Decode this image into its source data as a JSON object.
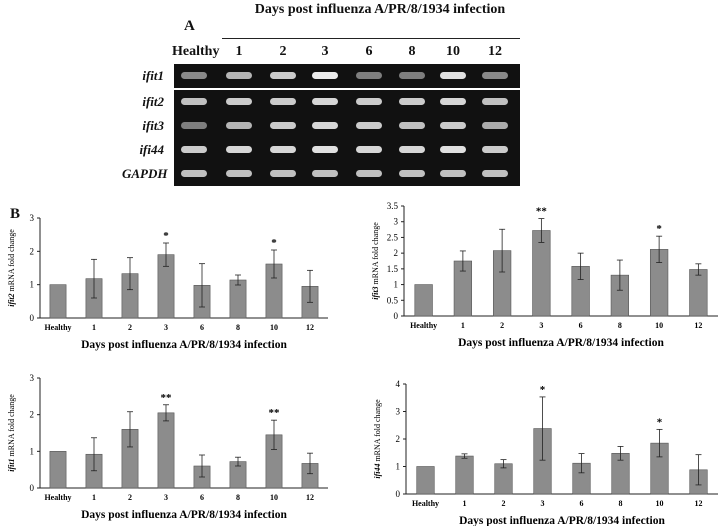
{
  "panelA": {
    "letter": "A",
    "title": "Days post influenza A/PR/8/1934 infection",
    "lanes": [
      "Healthy",
      "1",
      "2",
      "3",
      "6",
      "8",
      "10",
      "12"
    ],
    "genes": [
      "ifit1",
      "ifit2",
      "ifit3",
      "ifi44",
      "GAPDH"
    ],
    "band_intensity": [
      [
        0.55,
        0.75,
        0.85,
        1.0,
        0.5,
        0.5,
        0.95,
        0.55
      ],
      [
        0.8,
        0.85,
        0.85,
        0.9,
        0.85,
        0.85,
        0.9,
        0.8
      ],
      [
        0.5,
        0.75,
        0.85,
        0.9,
        0.85,
        0.8,
        0.85,
        0.7
      ],
      [
        0.85,
        0.9,
        0.9,
        0.95,
        0.9,
        0.9,
        0.95,
        0.85
      ],
      [
        0.8,
        0.8,
        0.8,
        0.8,
        0.8,
        0.8,
        0.8,
        0.8
      ]
    ]
  },
  "panelB": {
    "letter": "B"
  },
  "chart_data": [
    {
      "type": "bar",
      "gene": "ifit2",
      "ylabel_suffix": " mRNA fold change",
      "xlabel": "Days post influenza A/PR/8/1934 infection",
      "categories": [
        "Healthy",
        "1",
        "2",
        "3",
        "6",
        "8",
        "10",
        "12"
      ],
      "values": [
        1.0,
        1.18,
        1.33,
        1.9,
        0.98,
        1.14,
        1.62,
        0.95
      ],
      "errors": [
        0,
        0.58,
        0.48,
        0.35,
        0.65,
        0.15,
        0.42,
        0.48
      ],
      "significance": [
        "",
        "",
        "",
        "*",
        "",
        "",
        "*",
        ""
      ],
      "ylim": [
        0,
        3
      ],
      "yticks": [
        0,
        1,
        2,
        3
      ]
    },
    {
      "type": "bar",
      "gene": "ifit3",
      "ylabel_suffix": " mRNA fold change",
      "xlabel": "Days post influenza A/PR/8/1934 infection",
      "categories": [
        "Healthy",
        "1",
        "2",
        "3",
        "6",
        "8",
        "10",
        "12"
      ],
      "values": [
        1.0,
        1.75,
        2.08,
        2.72,
        1.58,
        1.3,
        2.12,
        1.48
      ],
      "errors": [
        0,
        0.32,
        0.68,
        0.38,
        0.42,
        0.48,
        0.42,
        0.18
      ],
      "significance": [
        "",
        "",
        "",
        "**",
        "",
        "",
        "*",
        ""
      ],
      "ylim": [
        0,
        3.5
      ],
      "yticks": [
        0,
        0.5,
        1,
        1.5,
        2,
        2.5,
        3,
        3.5
      ]
    },
    {
      "type": "bar",
      "gene": "ifit1",
      "ylabel_suffix": " mRNA fold change",
      "xlabel": "Days post influenza A/PR/8/1934 infection",
      "categories": [
        "Healthy",
        "1",
        "2",
        "3",
        "6",
        "8",
        "10",
        "12"
      ],
      "values": [
        1.0,
        0.92,
        1.6,
        2.05,
        0.6,
        0.72,
        1.45,
        0.67
      ],
      "errors": [
        0,
        0.45,
        0.48,
        0.22,
        0.3,
        0.12,
        0.4,
        0.28
      ],
      "significance": [
        "",
        "",
        "",
        "**",
        "",
        "",
        "**",
        ""
      ],
      "ylim": [
        0,
        3
      ],
      "yticks": [
        0,
        1,
        2,
        3
      ]
    },
    {
      "type": "bar",
      "gene": "ifi44",
      "ylabel_suffix": " mRNA fold change",
      "xlabel": "Days post influenza A/PR/8/1934 infection",
      "categories": [
        "Healthy",
        "1",
        "2",
        "3",
        "6",
        "8",
        "10",
        "12"
      ],
      "values": [
        1.0,
        1.38,
        1.1,
        2.38,
        1.12,
        1.48,
        1.85,
        0.88
      ],
      "errors": [
        0,
        0.08,
        0.15,
        1.15,
        0.35,
        0.25,
        0.5,
        0.55
      ],
      "significance": [
        "",
        "",
        "",
        "*",
        "",
        "",
        "*",
        ""
      ],
      "ylim": [
        0,
        4
      ],
      "yticks": [
        0,
        1,
        2,
        3,
        4
      ]
    }
  ]
}
